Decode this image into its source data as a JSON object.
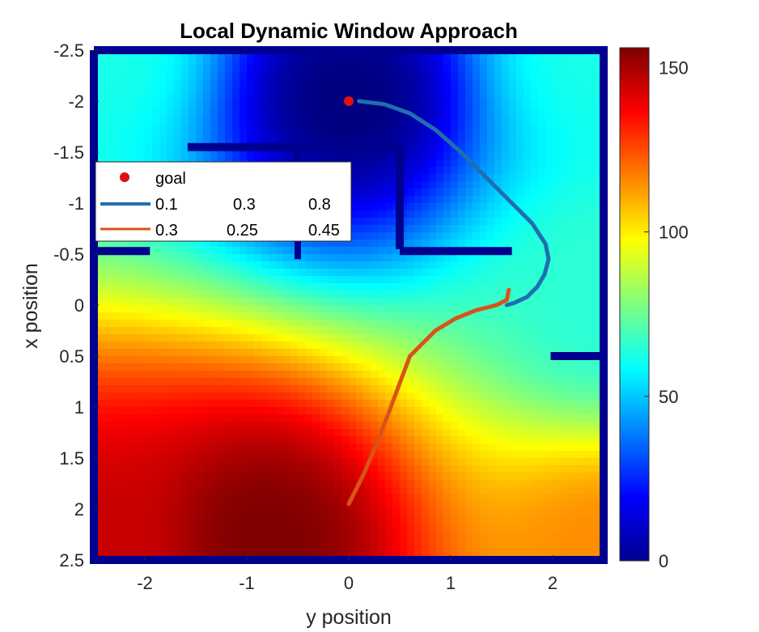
{
  "chart_data": {
    "type": "heatmap",
    "title": "Local Dynamic Window Approach",
    "xlabel": "y position",
    "ylabel": "x position",
    "xlim": [
      -2.5,
      2.5
    ],
    "ylim": [
      -2.5,
      2.5
    ],
    "y_axis_reversed": true,
    "x_ticks": [
      "-2",
      "-1",
      "0",
      "1",
      "2"
    ],
    "y_ticks": [
      "-2.5",
      "-2",
      "-1.5",
      "-1",
      "-0.5",
      "0",
      "0.5",
      "1",
      "1.5",
      "2",
      "2.5"
    ],
    "colormap": "jet",
    "colorbar": {
      "range": [
        0,
        156
      ],
      "ticks": [
        "0",
        "50",
        "100",
        "150"
      ]
    },
    "goal": {
      "y": 0.0,
      "x": -2.0,
      "color": "#e01010",
      "label": "goal"
    },
    "legend": {
      "placement": "upper-left",
      "entries": [
        {
          "label": "goal",
          "cols": []
        },
        {
          "cols": [
            "0.1",
            "0.3",
            "0.8"
          ],
          "color": "#1f6fb0"
        },
        {
          "cols": [
            "0.3",
            "0.25",
            "0.45"
          ],
          "color": "#d95319"
        }
      ]
    },
    "series": [
      {
        "color": "#1f6fb0",
        "points": [
          [
            0.1,
            -2.0
          ],
          [
            0.35,
            -1.97
          ],
          [
            0.6,
            -1.88
          ],
          [
            0.85,
            -1.72
          ],
          [
            1.1,
            -1.5
          ],
          [
            1.35,
            -1.25
          ],
          [
            1.6,
            -1.0
          ],
          [
            1.8,
            -0.8
          ],
          [
            1.93,
            -0.6
          ],
          [
            1.96,
            -0.45
          ],
          [
            1.92,
            -0.3
          ],
          [
            1.85,
            -0.18
          ],
          [
            1.75,
            -0.08
          ],
          [
            1.62,
            -0.02
          ],
          [
            1.55,
            0.0
          ]
        ]
      },
      {
        "color": "#d95319",
        "points": [
          [
            1.57,
            -0.15
          ],
          [
            1.55,
            -0.05
          ],
          [
            1.45,
            0.0
          ],
          [
            1.25,
            0.05
          ],
          [
            1.05,
            0.13
          ],
          [
            0.85,
            0.25
          ],
          [
            0.6,
            0.5
          ],
          [
            0.45,
            0.9
          ],
          [
            0.3,
            1.3
          ],
          [
            0.15,
            1.65
          ],
          [
            0.0,
            1.95
          ]
        ]
      }
    ],
    "walls": [
      [
        [
          -2.5,
          -2.5
        ],
        [
          2.5,
          -2.5
        ],
        [
          2.5,
          2.5
        ],
        [
          -2.5,
          2.5
        ],
        [
          -2.5,
          -2.5
        ]
      ],
      [
        [
          -1.58,
          -1.55
        ],
        [
          0.52,
          -1.55
        ]
      ],
      [
        [
          0.5,
          -1.55
        ],
        [
          0.5,
          -0.55
        ]
      ],
      [
        [
          0.5,
          -0.53
        ],
        [
          1.6,
          -0.53
        ]
      ],
      [
        [
          -2.5,
          -0.53
        ],
        [
          -1.95,
          -0.53
        ]
      ],
      [
        [
          1.98,
          0.5
        ],
        [
          2.5,
          0.5
        ]
      ]
    ],
    "wall_stubs": [
      [
        [
          -0.5,
          -1.55
        ],
        [
          -0.5,
          -0.45
        ]
      ]
    ],
    "cost_anchors": {
      "values": [
        {
          "y": 0.0,
          "x": -2.0,
          "v": 0
        },
        {
          "y": -0.8,
          "x": 2.3,
          "v": 156
        },
        {
          "y": -2.5,
          "x": 2.5,
          "v": 145
        },
        {
          "y": 2.5,
          "x": 2.5,
          "v": 115
        },
        {
          "y": 2.5,
          "x": -2.5,
          "v": 62
        },
        {
          "y": -2.5,
          "x": -2.5,
          "v": 62
        },
        {
          "y": 2.5,
          "x": 0.0,
          "v": 65
        }
      ]
    }
  }
}
